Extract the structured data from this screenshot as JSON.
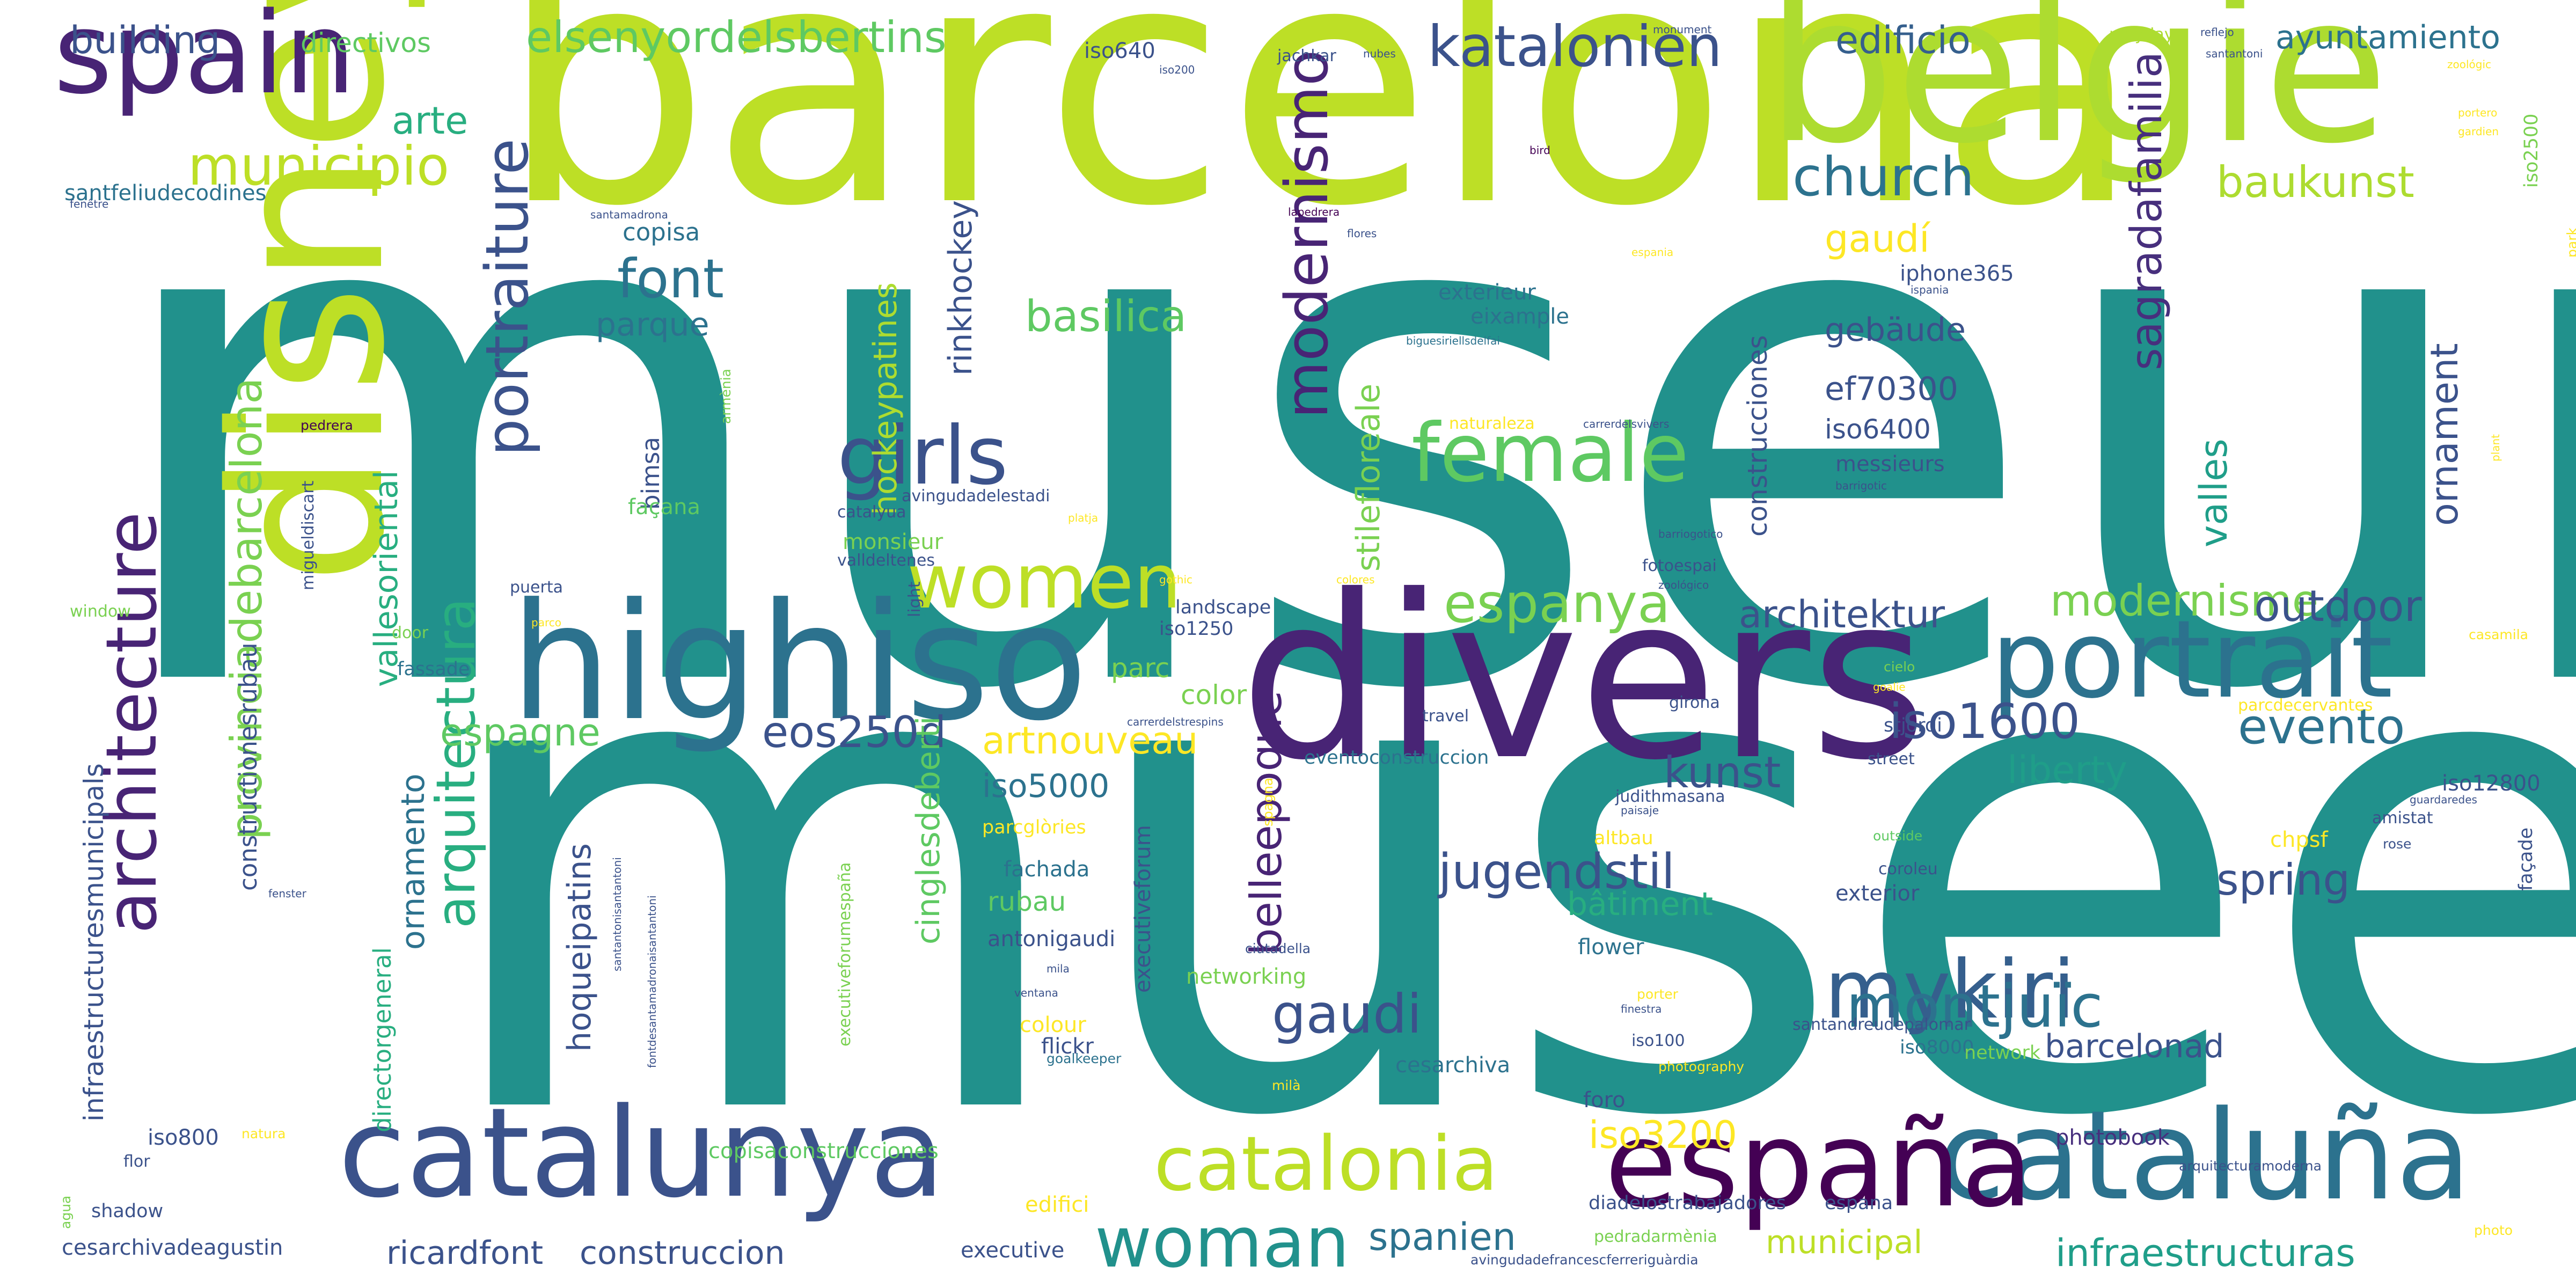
{
  "cloud": {
    "palette": [
      "#21918c",
      "#bddf26",
      "#482475",
      "#3b528b",
      "#2c728e",
      "#5ec962",
      "#28ae80",
      "#440154",
      "#addc30",
      "#fde725",
      "#355f8d",
      "#1f9e89",
      "#472f7d",
      "#7ad151",
      "#414487"
    ],
    "words": [
      {
        "text": "museum",
        "color": "#21918c"
      },
      {
        "text": "musee",
        "color": "#21918c"
      },
      {
        "text": "barcelona",
        "color": "#bddf26"
      },
      {
        "text": "divers",
        "color": "#482475"
      },
      {
        "text": "disney",
        "color": "#bddf26"
      },
      {
        "text": "belgie",
        "color": "#addc30"
      },
      {
        "text": "spain",
        "color": "#482475"
      },
      {
        "text": "highiso",
        "color": "#2c728e"
      },
      {
        "text": "portrait",
        "color": "#2c728e"
      },
      {
        "text": "catalunya",
        "color": "#3b528b"
      },
      {
        "text": "cataluña",
        "color": "#2c728e"
      },
      {
        "text": "españa",
        "color": "#440154"
      },
      {
        "text": "catalonia",
        "color": "#bddf26"
      },
      {
        "text": "woman",
        "color": "#21918c"
      },
      {
        "text": "architecture",
        "color": "#482475"
      },
      {
        "text": "female",
        "color": "#5ec962"
      },
      {
        "text": "girls",
        "color": "#3b528b"
      },
      {
        "text": "women",
        "color": "#bddf26"
      },
      {
        "text": "mykiri",
        "color": "#355f8d"
      },
      {
        "text": "montjuïc",
        "color": "#2c728e"
      },
      {
        "text": "katalonien",
        "color": "#3b528b"
      },
      {
        "text": "elsenyordelsbertins",
        "color": "#5ec962"
      },
      {
        "text": "church",
        "color": "#2c728e"
      },
      {
        "text": "iso1600",
        "color": "#3b528b"
      },
      {
        "text": "evento",
        "color": "#2c728e"
      },
      {
        "text": "gaudi",
        "color": "#3b528b"
      },
      {
        "text": "modernismo",
        "color": "#482475"
      },
      {
        "text": "portraiture",
        "color": "#3b528b"
      },
      {
        "text": "arquitectura",
        "color": "#28ae80"
      },
      {
        "text": "provinciadebarcelona",
        "color": "#7ad151"
      },
      {
        "text": "spanien",
        "color": "#2c728e"
      },
      {
        "text": "espanya",
        "color": "#7ad151"
      },
      {
        "text": "modernisme",
        "color": "#7ad151"
      },
      {
        "text": "outdoor",
        "color": "#3b528b"
      },
      {
        "text": "font",
        "color": "#2c728e"
      },
      {
        "text": "municipio",
        "color": "#bddf26"
      },
      {
        "text": "architektur",
        "color": "#3b528b"
      },
      {
        "text": "jugendstil",
        "color": "#3b528b"
      },
      {
        "text": "spring",
        "color": "#3b528b"
      },
      {
        "text": "baukunst",
        "color": "#addc30"
      },
      {
        "text": "sagradafamilia",
        "color": "#472f7d"
      },
      {
        "text": "infraestructuras",
        "color": "#1f9e89"
      },
      {
        "text": "arte",
        "color": "#28ae80"
      },
      {
        "text": "building",
        "color": "#3b528b"
      },
      {
        "text": "edificio",
        "color": "#355f8d"
      },
      {
        "text": "ayuntamiento",
        "color": "#2c728e"
      },
      {
        "text": "basilica",
        "color": "#5ec962"
      },
      {
        "text": "stilefloreale",
        "color": "#7ad151"
      },
      {
        "text": "belleepoque",
        "color": "#482475"
      },
      {
        "text": "liberty",
        "color": "#1f9e89"
      },
      {
        "text": "kunst",
        "color": "#3b528b"
      },
      {
        "text": "artnouveau",
        "color": "#fde725"
      },
      {
        "text": "eos250d",
        "color": "#3b528b"
      },
      {
        "text": "espagne",
        "color": "#5ec962"
      },
      {
        "text": "iso3200",
        "color": "#fde725"
      },
      {
        "text": "construccion",
        "color": "#3b528b"
      },
      {
        "text": "ricardfont",
        "color": "#3b528b"
      },
      {
        "text": "municipal",
        "color": "#bddf26"
      },
      {
        "text": "barcelonad",
        "color": "#3b528b"
      },
      {
        "text": "bâtiment",
        "color": "#28ae80"
      },
      {
        "text": "ornamento",
        "color": "#2c728e"
      },
      {
        "text": "ornament",
        "color": "#3b528b"
      },
      {
        "text": "valles",
        "color": "#1f9e89"
      },
      {
        "text": "vallesoriental",
        "color": "#28ae80"
      },
      {
        "text": "hockeypatines",
        "color": "#addc30"
      },
      {
        "text": "rinkhockey",
        "color": "#3b528b"
      },
      {
        "text": "cinglesdeberti",
        "color": "#5ec962"
      },
      {
        "text": "hoqueipatins",
        "color": "#3b528b"
      },
      {
        "text": "gaudí",
        "color": "#fde725"
      },
      {
        "text": "gebäude",
        "color": "#3b528b"
      },
      {
        "text": "ef70300",
        "color": "#3b528b"
      },
      {
        "text": "iso6400",
        "color": "#3b528b"
      },
      {
        "text": "iso5000",
        "color": "#2c728e"
      },
      {
        "text": "parc",
        "color": "#7ad151"
      },
      {
        "text": "color",
        "color": "#7ad151"
      },
      {
        "text": "rubau",
        "color": "#5ec962"
      },
      {
        "text": "parque",
        "color": "#2c728e"
      },
      {
        "text": "copisa",
        "color": "#2c728e"
      },
      {
        "text": "directivos",
        "color": "#5ec962"
      },
      {
        "text": "santfeliudecodines",
        "color": "#2c728e"
      },
      {
        "text": "construcciones",
        "color": "#3b528b"
      },
      {
        "text": "constructionesrubau",
        "color": "#3b528b"
      },
      {
        "text": "infraestructuresmunicipals",
        "color": "#3b528b"
      },
      {
        "text": "directorgeneral",
        "color": "#28ae80"
      },
      {
        "text": "bimsa",
        "color": "#3b528b"
      },
      {
        "text": "façana",
        "color": "#5ec962"
      },
      {
        "text": "copisaconstrucciones",
        "color": "#5ec962"
      },
      {
        "text": "edifici",
        "color": "#fde725"
      },
      {
        "text": "iso800",
        "color": "#3b528b"
      },
      {
        "text": "cesarchivadeagustin",
        "color": "#3b528b"
      },
      {
        "text": "executive",
        "color": "#3b528b"
      },
      {
        "text": "photobook",
        "color": "#472f7d"
      },
      {
        "text": "chpsf",
        "color": "#fde725"
      },
      {
        "text": "iso12800",
        "color": "#3b528b"
      },
      {
        "text": "façade",
        "color": "#3b528b"
      },
      {
        "text": "iso2500",
        "color": "#7ad151"
      },
      {
        "text": "iso640",
        "color": "#3b528b"
      },
      {
        "text": "iso200",
        "color": "#3b528b"
      },
      {
        "text": "jachkar",
        "color": "#3b528b"
      },
      {
        "text": "nubes",
        "color": "#3b528b"
      },
      {
        "text": "monument",
        "color": "#3b528b"
      },
      {
        "text": "santantoni",
        "color": "#3b528b"
      },
      {
        "text": "mayday",
        "color": "#addc30"
      },
      {
        "text": "reflejo",
        "color": "#3b528b"
      },
      {
        "text": "zoológic",
        "color": "#fde725"
      },
      {
        "text": "portero",
        "color": "#fde725"
      },
      {
        "text": "gardien",
        "color": "#fde725"
      },
      {
        "text": "bird",
        "color": "#440154"
      },
      {
        "text": "fenêtre",
        "color": "#3b528b"
      },
      {
        "text": "santamadrona",
        "color": "#3b528b"
      },
      {
        "text": "lapedrera",
        "color": "#440154"
      },
      {
        "text": "flores",
        "color": "#3b528b"
      },
      {
        "text": "iphone365",
        "color": "#3b528b"
      },
      {
        "text": "ispania",
        "color": "#3b528b"
      },
      {
        "text": "espania",
        "color": "#fde725"
      },
      {
        "text": "exterieur",
        "color": "#2c728e"
      },
      {
        "text": "eixample",
        "color": "#2c728e"
      },
      {
        "text": "biguesiriellsdelfai",
        "color": "#2c728e"
      },
      {
        "text": "naturaleza",
        "color": "#fde725"
      },
      {
        "text": "carrerdelsvivers",
        "color": "#3b528b"
      },
      {
        "text": "messieurs",
        "color": "#3b528b"
      },
      {
        "text": "barrigotic",
        "color": "#3b528b"
      },
      {
        "text": "barriogotico",
        "color": "#3b528b"
      },
      {
        "text": "pedrera",
        "color": "#440154"
      },
      {
        "text": "armènia",
        "color": "#7ad151"
      },
      {
        "text": "avingudadelestadi",
        "color": "#3b528b"
      },
      {
        "text": "catalyua",
        "color": "#3b528b"
      },
      {
        "text": "platja",
        "color": "#fde725"
      },
      {
        "text": "monsieur",
        "color": "#7ad151"
      },
      {
        "text": "valldeltenes",
        "color": "#3b528b"
      },
      {
        "text": "migueldiscart",
        "color": "#3b528b"
      },
      {
        "text": "puerta",
        "color": "#3b528b"
      },
      {
        "text": "light",
        "color": "#3b528b"
      },
      {
        "text": "gothic",
        "color": "#fde725"
      },
      {
        "text": "colores",
        "color": "#fde725"
      },
      {
        "text": "fotoespai",
        "color": "#3b528b"
      },
      {
        "text": "zoológico",
        "color": "#3b528b"
      },
      {
        "text": "window",
        "color": "#7ad151"
      },
      {
        "text": "door",
        "color": "#7ad151"
      },
      {
        "text": "parco",
        "color": "#fde725"
      },
      {
        "text": "landscape",
        "color": "#3b528b"
      },
      {
        "text": "iso1250",
        "color": "#3b528b"
      },
      {
        "text": "fassade",
        "color": "#2c728e"
      },
      {
        "text": "travel",
        "color": "#3b528b"
      },
      {
        "text": "carrerdelstrespins",
        "color": "#3b528b"
      },
      {
        "text": "girona",
        "color": "#3b528b"
      },
      {
        "text": "cielo",
        "color": "#7ad151"
      },
      {
        "text": "goalie",
        "color": "#fde725"
      },
      {
        "text": "parcdecervantes",
        "color": "#fde725"
      },
      {
        "text": "casamila",
        "color": "#fde725"
      },
      {
        "text": "stjordi",
        "color": "#3b528b"
      },
      {
        "text": "street",
        "color": "#3b528b"
      },
      {
        "text": "eventoconstruccion",
        "color": "#2c728e"
      },
      {
        "text": "judithmasana",
        "color": "#3b528b"
      },
      {
        "text": "paisaje",
        "color": "#3b528b"
      },
      {
        "text": "guardaredes",
        "color": "#3b528b"
      },
      {
        "text": "amistat",
        "color": "#3b528b"
      },
      {
        "text": "rose",
        "color": "#3b528b"
      },
      {
        "text": "parcglòries",
        "color": "#fde725"
      },
      {
        "text": "altbau",
        "color": "#fde725"
      },
      {
        "text": "outside",
        "color": "#5ec962"
      },
      {
        "text": "coroleu",
        "color": "#3b528b"
      },
      {
        "text": "exterior",
        "color": "#3b528b"
      },
      {
        "text": "fachada",
        "color": "#2c728e"
      },
      {
        "text": "executiveforumespaña",
        "color": "#7ad151"
      },
      {
        "text": "executiveforum",
        "color": "#3b528b"
      },
      {
        "text": "spagna",
        "color": "#fde725"
      },
      {
        "text": "santantonisantantoni",
        "color": "#3b528b"
      },
      {
        "text": "fontdesantamadronaisantantoni",
        "color": "#3b528b"
      },
      {
        "text": "antonigaudi",
        "color": "#3b528b"
      },
      {
        "text": "flower",
        "color": "#2c728e"
      },
      {
        "text": "fenster",
        "color": "#3b528b"
      },
      {
        "text": "ciutadella",
        "color": "#3b528b"
      },
      {
        "text": "mila",
        "color": "#3b528b"
      },
      {
        "text": "ventana",
        "color": "#3b528b"
      },
      {
        "text": "networking",
        "color": "#7ad151"
      },
      {
        "text": "santandreudepalomar",
        "color": "#3b528b"
      },
      {
        "text": "porter",
        "color": "#fde725"
      },
      {
        "text": "finestra",
        "color": "#3b528b"
      },
      {
        "text": "colour",
        "color": "#fde725"
      },
      {
        "text": "flickr",
        "color": "#3b528b"
      },
      {
        "text": "goalkeeper",
        "color": "#2c728e"
      },
      {
        "text": "cesarchiva",
        "color": "#2c728e"
      },
      {
        "text": "iso100",
        "color": "#3b528b"
      },
      {
        "text": "iso8000",
        "color": "#2c728e"
      },
      {
        "text": "network",
        "color": "#7ad151"
      },
      {
        "text": "photography",
        "color": "#fde725"
      },
      {
        "text": "milà",
        "color": "#fde725"
      },
      {
        "text": "foro",
        "color": "#3b528b"
      },
      {
        "text": "flor",
        "color": "#3b528b"
      },
      {
        "text": "natura",
        "color": "#fde725"
      },
      {
        "text": "agua",
        "color": "#7ad151"
      },
      {
        "text": "shadow",
        "color": "#3b528b"
      },
      {
        "text": "diadelostrabajadores",
        "color": "#3b528b"
      },
      {
        "text": "espana",
        "color": "#3b528b"
      },
      {
        "text": "arquitecturamoderna",
        "color": "#3b528b"
      },
      {
        "text": "pedradarmènia",
        "color": "#7ad151"
      },
      {
        "text": "avingudadefrancescferreriguàrdia",
        "color": "#3b528b"
      },
      {
        "text": "photo",
        "color": "#fde725"
      },
      {
        "text": "park",
        "color": "#fde725"
      },
      {
        "text": "plant",
        "color": "#fde725"
      }
    ]
  }
}
